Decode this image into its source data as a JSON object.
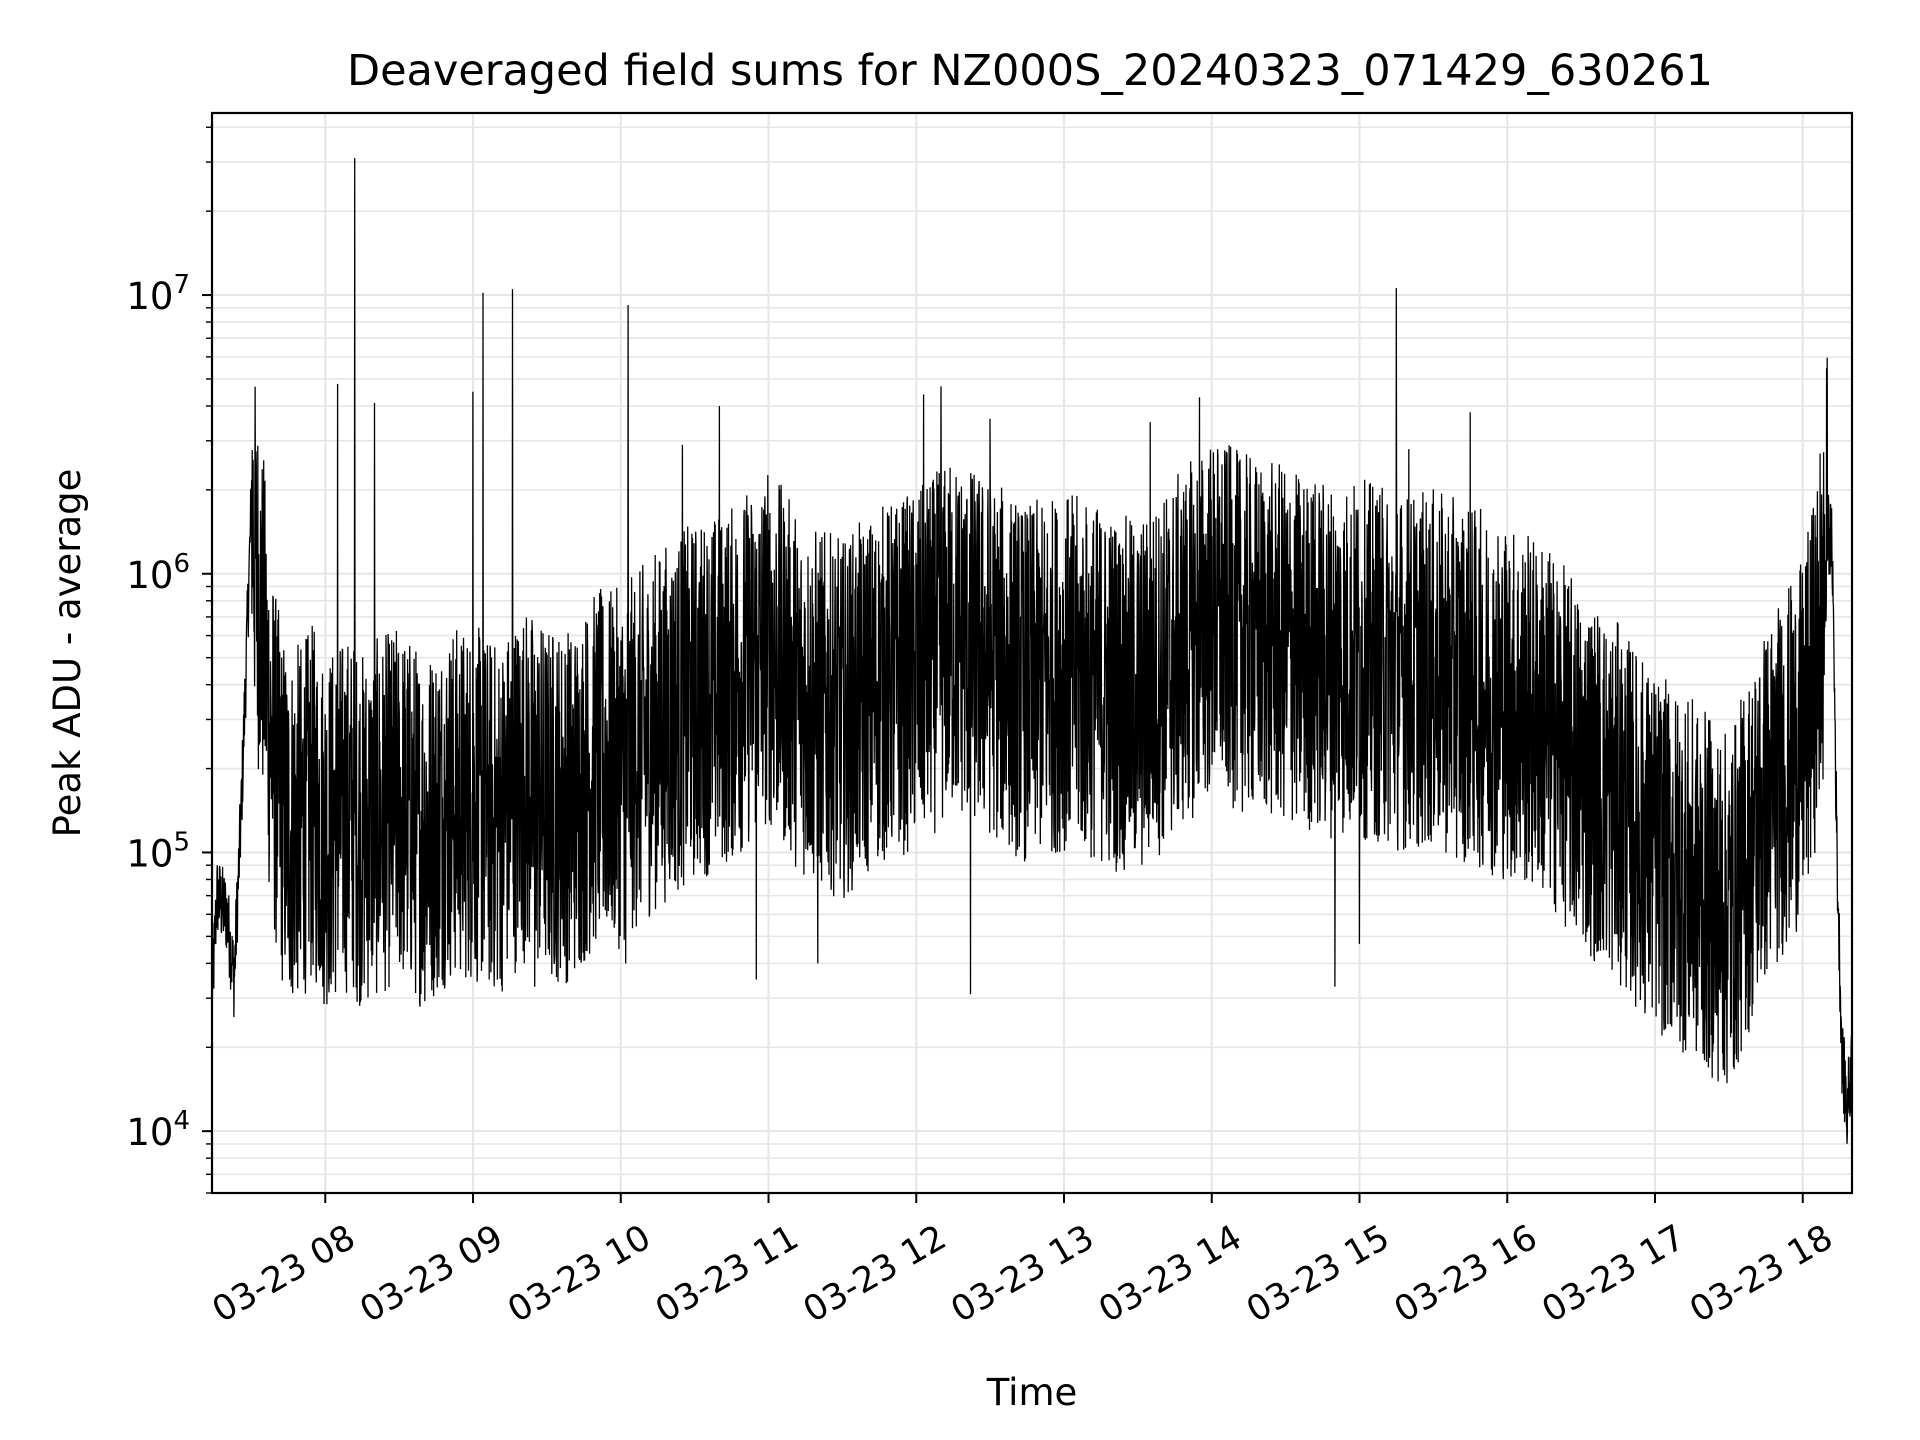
{
  "chart_data": {
    "type": "line",
    "title": "Deaveraged field sums for NZ000S_20240323_071429_630261",
    "xlabel": "Time",
    "ylabel": "Peak ADU - average",
    "yscale": "log",
    "xlim": [
      "2024-03-23 07:14",
      "2024-03-23 18:20"
    ],
    "ylim": [
      6000,
      45000000
    ],
    "grid": true,
    "line_color": "#000000",
    "grid_color": "#e6e6e6",
    "x_ticks": [
      {
        "value": "2024-03-23 08:00",
        "label": "03-23 08"
      },
      {
        "value": "2024-03-23 09:00",
        "label": "03-23 09"
      },
      {
        "value": "2024-03-23 10:00",
        "label": "03-23 10"
      },
      {
        "value": "2024-03-23 11:00",
        "label": "03-23 11"
      },
      {
        "value": "2024-03-23 12:00",
        "label": "03-23 12"
      },
      {
        "value": "2024-03-23 13:00",
        "label": "03-23 13"
      },
      {
        "value": "2024-03-23 14:00",
        "label": "03-23 14"
      },
      {
        "value": "2024-03-23 15:00",
        "label": "03-23 15"
      },
      {
        "value": "2024-03-23 16:00",
        "label": "03-23 16"
      },
      {
        "value": "2024-03-23 17:00",
        "label": "03-23 17"
      },
      {
        "value": "2024-03-23 18:00",
        "label": "03-23 18"
      }
    ],
    "y_ticks": [
      {
        "value": 10000,
        "base": "10",
        "exp": "4"
      },
      {
        "value": 100000,
        "base": "10",
        "exp": "5"
      },
      {
        "value": 1000000,
        "base": "10",
        "exp": "6"
      },
      {
        "value": 10000000,
        "base": "10",
        "exp": "7"
      }
    ],
    "series": [
      {
        "x": [
          "2024-03-23 07:14",
          "2024-03-23 07:16",
          "2024-03-23 07:20",
          "2024-03-23 07:23",
          "2024-03-23 07:26",
          "2024-03-23 07:30",
          "2024-03-23 07:32",
          "2024-03-23 07:35",
          "2024-03-23 07:38",
          "2024-03-23 07:42",
          "2024-03-23 07:45",
          "2024-03-23 07:50",
          "2024-03-23 07:55",
          "2024-03-23 08:00",
          "2024-03-23 08:05",
          "2024-03-23 08:10",
          "2024-03-23 08:15",
          "2024-03-23 08:20",
          "2024-03-23 08:30",
          "2024-03-23 08:40",
          "2024-03-23 08:50",
          "2024-03-23 09:00",
          "2024-03-23 09:10",
          "2024-03-23 09:20",
          "2024-03-23 09:30",
          "2024-03-23 09:40",
          "2024-03-23 09:50",
          "2024-03-23 10:00",
          "2024-03-23 10:15",
          "2024-03-23 10:30",
          "2024-03-23 10:45",
          "2024-03-23 11:00",
          "2024-03-23 11:15",
          "2024-03-23 11:30",
          "2024-03-23 11:45",
          "2024-03-23 12:00",
          "2024-03-23 12:15",
          "2024-03-23 12:30",
          "2024-03-23 12:45",
          "2024-03-23 13:00",
          "2024-03-23 13:15",
          "2024-03-23 13:30",
          "2024-03-23 13:45",
          "2024-03-23 14:00",
          "2024-03-23 14:15",
          "2024-03-23 14:30",
          "2024-03-23 14:45",
          "2024-03-23 15:00",
          "2024-03-23 15:15",
          "2024-03-23 15:30",
          "2024-03-23 15:45",
          "2024-03-23 16:00",
          "2024-03-23 16:15",
          "2024-03-23 16:30",
          "2024-03-23 16:45",
          "2024-03-23 17:00",
          "2024-03-23 17:15",
          "2024-03-23 17:30",
          "2024-03-23 17:45",
          "2024-03-23 18:00",
          "2024-03-23 18:05",
          "2024-03-23 18:08",
          "2024-03-23 18:10",
          "2024-03-23 18:12",
          "2024-03-23 18:14",
          "2024-03-23 18:16",
          "2024-03-23 18:18",
          "2024-03-23 18:20"
        ],
        "y": [
          30000,
          70000,
          60000,
          35000,
          150000,
          1800000,
          1000000,
          600000,
          250000,
          150000,
          120000,
          130000,
          150000,
          120000,
          130000,
          140000,
          120000,
          130000,
          150000,
          120000,
          150000,
          150000,
          130000,
          180000,
          150000,
          150000,
          200000,
          200000,
          280000,
          350000,
          400000,
          550000,
          350000,
          300000,
          400000,
          450000,
          600000,
          500000,
          400000,
          450000,
          400000,
          350000,
          500000,
          700000,
          600000,
          550000,
          500000,
          500000,
          450000,
          450000,
          400000,
          350000,
          300000,
          200000,
          150000,
          100000,
          80000,
          60000,
          150000,
          250000,
          450000,
          600000,
          1500000,
          1200000,
          90000,
          18000,
          12000,
          18000
        ]
      }
    ],
    "spikes": [
      {
        "x": "2024-03-23 08:12",
        "y": 31000000
      },
      {
        "x": "2024-03-23 08:05",
        "y": 4800000
      },
      {
        "x": "2024-03-23 08:20",
        "y": 4100000
      },
      {
        "x": "2024-03-23 09:00",
        "y": 4500000
      },
      {
        "x": "2024-03-23 09:04",
        "y": 10200000
      },
      {
        "x": "2024-03-23 09:16",
        "y": 10500000
      },
      {
        "x": "2024-03-23 10:03",
        "y": 9200000
      },
      {
        "x": "2024-03-23 10:25",
        "y": 2900000
      },
      {
        "x": "2024-03-23 10:40",
        "y": 4000000
      },
      {
        "x": "2024-03-23 12:03",
        "y": 4400000
      },
      {
        "x": "2024-03-23 12:10",
        "y": 4700000
      },
      {
        "x": "2024-03-23 12:30",
        "y": 3600000
      },
      {
        "x": "2024-03-23 13:35",
        "y": 3500000
      },
      {
        "x": "2024-03-23 13:55",
        "y": 4300000
      },
      {
        "x": "2024-03-23 15:15",
        "y": 10600000
      },
      {
        "x": "2024-03-23 15:20",
        "y": 2800000
      },
      {
        "x": "2024-03-23 15:45",
        "y": 3800000
      },
      {
        "x": "2024-03-23 18:07",
        "y": 2700000
      }
    ],
    "dips": [
      {
        "x": "2024-03-23 07:50",
        "y": 45000
      },
      {
        "x": "2024-03-23 09:25",
        "y": 33000
      },
      {
        "x": "2024-03-23 10:02",
        "y": 40000
      },
      {
        "x": "2024-03-23 10:55",
        "y": 35000
      },
      {
        "x": "2024-03-23 11:20",
        "y": 40000
      },
      {
        "x": "2024-03-23 12:22",
        "y": 31000
      },
      {
        "x": "2024-03-23 14:50",
        "y": 33000
      },
      {
        "x": "2024-03-23 15:00",
        "y": 47000
      },
      {
        "x": "2024-03-23 17:20",
        "y": 28000
      },
      {
        "x": "2024-03-23 17:25",
        "y": 26000
      },
      {
        "x": "2024-03-23 18:18",
        "y": 9000
      }
    ]
  }
}
